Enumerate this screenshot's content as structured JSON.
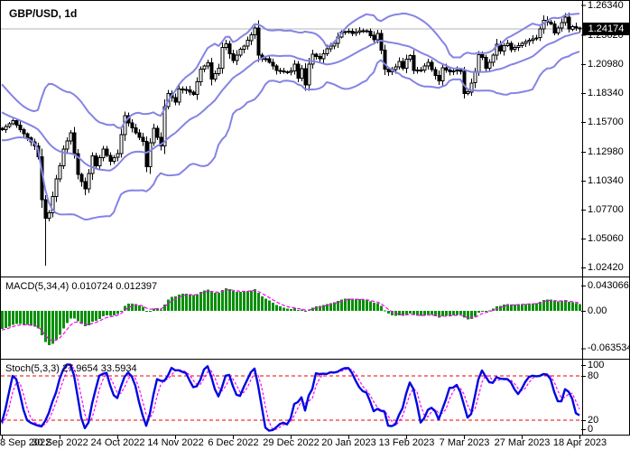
{
  "price_panel": {
    "title": "GBP/USD, 1d",
    "current_price_label": "1.24174",
    "y_tick_labels": [
      "1.26340",
      "1.23620",
      "1.20980",
      "1.18340",
      "1.15700",
      "1.12980",
      "1.10340",
      "1.07700",
      "1.05060",
      "1.02420"
    ]
  },
  "macd_panel": {
    "label": "MACD(5,34,4) 0.010724 0.012397",
    "name": "MACD",
    "params": [
      5,
      34,
      4
    ],
    "readout_values": [
      0.010724,
      0.012397
    ],
    "y_tick_labels": [
      "0.043066",
      "0.00",
      "-0.063534"
    ]
  },
  "stoch_panel": {
    "label": "Stoch(5,3,3) 27.9654 33.5934",
    "name": "Stochastic",
    "params": [
      5,
      3,
      3
    ],
    "readout_values": [
      27.9654,
      33.5934
    ],
    "y_tick_labels": [
      "100",
      "80",
      "20",
      "0"
    ],
    "overbought_level": 80,
    "oversold_level": 20
  },
  "x_axis": {
    "labels": [
      "8 Sep 2022",
      "30 Sep 2022",
      "24 Oct 2022",
      "14 Nov 2022",
      "6 Dec 2022",
      "29 Dec 2022",
      "20 Jan 2023",
      "13 Feb 2023",
      "7 Mar 2023",
      "27 Mar 2023",
      "18 Apr 2023"
    ],
    "tick_indices": [
      0,
      16,
      32,
      48,
      64,
      80,
      96,
      112,
      128,
      144,
      160
    ]
  },
  "colors": {
    "background": "#ffffff",
    "border": "#000000",
    "bollinger_band": "#8484e4",
    "up_candle_fill": "#ffffff",
    "down_candle_fill": "#000000",
    "candle_outline": "#000000",
    "current_price_line": "#b4b4b4",
    "price_tag_bg": "#000000",
    "price_tag_text": "#ffffff",
    "macd_bar": "#0a8f0a",
    "macd_signal": "#ff00ff",
    "stoch_k": "#0008e0",
    "stoch_d": "#ff00ff",
    "stoch_levels": "#ee0000"
  },
  "chart_data": {
    "type": "candlestick",
    "symbol": "GBP/USD",
    "timeframe": "1d",
    "title": "GBP/USD, 1d",
    "num_candles": 161,
    "current_price": 1.24174,
    "price_axis_ticks": [
      1.2634,
      1.2362,
      1.2098,
      1.1834,
      1.157,
      1.1298,
      1.1034,
      1.077,
      1.0506,
      1.0242
    ],
    "overlays": [
      {
        "name": "bollinger-bands",
        "lines": [
          "upper",
          "middle",
          "lower"
        ]
      }
    ],
    "candles": {
      "close_anchors": [
        [
          -20,
          1.192
        ],
        [
          -15,
          1.178
        ],
        [
          -10,
          1.165
        ],
        [
          -5,
          1.153
        ],
        [
          -1,
          1.151
        ],
        [
          0,
          1.15
        ],
        [
          3,
          1.158
        ],
        [
          6,
          1.146
        ],
        [
          9,
          1.135
        ],
        [
          10,
          1.125
        ],
        [
          11,
          1.086
        ],
        [
          12,
          1.069
        ],
        [
          13,
          1.074
        ],
        [
          14,
          1.089
        ],
        [
          15,
          1.105
        ],
        [
          16,
          1.117
        ],
        [
          17,
          1.132
        ],
        [
          19,
          1.147
        ],
        [
          21,
          1.109
        ],
        [
          23,
          1.096
        ],
        [
          24,
          1.11
        ],
        [
          25,
          1.126
        ],
        [
          26,
          1.117
        ],
        [
          28,
          1.132
        ],
        [
          30,
          1.121
        ],
        [
          32,
          1.128
        ],
        [
          34,
          1.1625
        ],
        [
          35,
          1.156
        ],
        [
          37,
          1.147
        ],
        [
          39,
          1.139
        ],
        [
          40,
          1.116
        ],
        [
          41,
          1.138
        ],
        [
          42,
          1.151
        ],
        [
          44,
          1.135
        ],
        [
          45,
          1.171
        ],
        [
          46,
          1.183
        ],
        [
          48,
          1.175
        ],
        [
          49,
          1.187
        ],
        [
          51,
          1.186
        ],
        [
          53,
          1.182
        ],
        [
          55,
          1.205
        ],
        [
          57,
          1.211
        ],
        [
          58,
          1.196
        ],
        [
          60,
          1.206
        ],
        [
          61,
          1.225
        ],
        [
          62,
          1.228
        ],
        [
          63,
          1.219
        ],
        [
          64,
          1.213
        ],
        [
          66,
          1.223
        ],
        [
          67,
          1.226
        ],
        [
          69,
          1.2365
        ],
        [
          70,
          1.2425
        ],
        [
          71,
          1.218
        ],
        [
          72,
          1.214
        ],
        [
          73,
          1.2145
        ],
        [
          75,
          1.208
        ],
        [
          76,
          1.204
        ],
        [
          79,
          1.202
        ],
        [
          80,
          1.2035
        ],
        [
          81,
          1.2095
        ],
        [
          82,
          1.197
        ],
        [
          83,
          1.2055
        ],
        [
          84,
          1.1905
        ],
        [
          85,
          1.2095
        ],
        [
          86,
          1.2185
        ],
        [
          88,
          1.2145
        ],
        [
          90,
          1.2235
        ],
        [
          92,
          1.2285
        ],
        [
          93,
          1.2345
        ],
        [
          94,
          1.239
        ],
        [
          96,
          1.2395
        ],
        [
          97,
          1.2375
        ],
        [
          99,
          1.24
        ],
        [
          101,
          1.2398
        ],
        [
          103,
          1.2318
        ],
        [
          104,
          1.2376
        ],
        [
          105,
          1.2224
        ],
        [
          106,
          1.205
        ],
        [
          107,
          1.2025
        ],
        [
          109,
          1.207
        ],
        [
          110,
          1.2122
        ],
        [
          111,
          1.206
        ],
        [
          112,
          1.2143
        ],
        [
          113,
          1.2175
        ],
        [
          114,
          1.2039
        ],
        [
          116,
          1.2043
        ],
        [
          118,
          1.2114
        ],
        [
          119,
          1.2046
        ],
        [
          121,
          1.1943
        ],
        [
          122,
          1.2062
        ],
        [
          124,
          1.2025
        ],
        [
          126,
          1.2043
        ],
        [
          127,
          1.203
        ],
        [
          128,
          1.183
        ],
        [
          129,
          1.1843
        ],
        [
          130,
          1.1925
        ],
        [
          131,
          1.2029
        ],
        [
          132,
          1.2183
        ],
        [
          133,
          1.2157
        ],
        [
          134,
          1.2058
        ],
        [
          135,
          1.2112
        ],
        [
          136,
          1.2177
        ],
        [
          137,
          1.2276
        ],
        [
          138,
          1.2215
        ],
        [
          139,
          1.2267
        ],
        [
          140,
          1.2285
        ],
        [
          141,
          1.223
        ],
        [
          144,
          1.2285
        ],
        [
          146,
          1.2315
        ],
        [
          148,
          1.2337
        ],
        [
          149,
          1.2417
        ],
        [
          150,
          1.2497
        ],
        [
          152,
          1.2463
        ],
        [
          153,
          1.2382
        ],
        [
          154,
          1.2427
        ],
        [
          156,
          1.2525
        ],
        [
          157,
          1.2415
        ],
        [
          158,
          1.2437
        ],
        [
          160,
          1.24174
        ]
      ],
      "special_lows": [
        [
          12,
          1.026
        ],
        [
          23,
          1.09
        ]
      ],
      "lead_in_bars": 20
    },
    "macd": {
      "y_ticks": [
        0.043066,
        0.0,
        -0.063534
      ]
    },
    "stoch": {
      "y_ticks": [
        100,
        80,
        20,
        0
      ],
      "levels": [
        80,
        20
      ]
    }
  }
}
